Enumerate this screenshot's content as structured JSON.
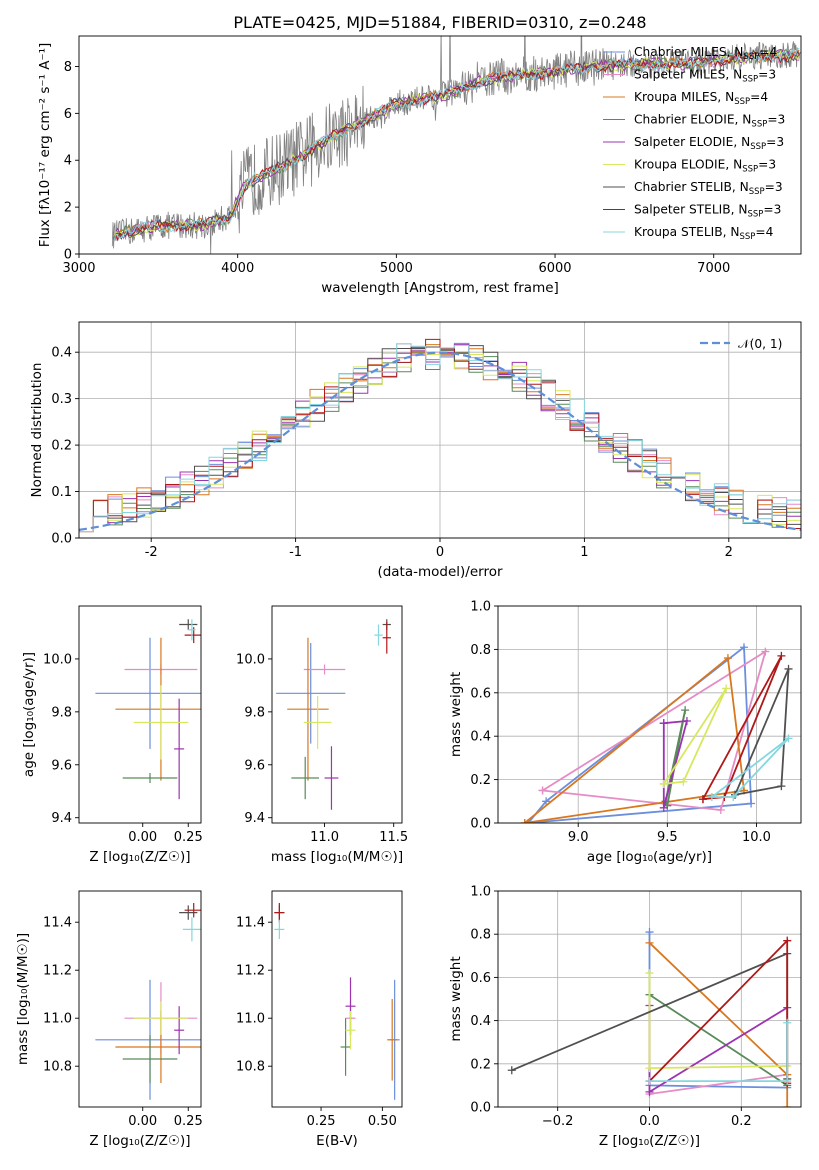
{
  "figure": {
    "title": "PLATE=0425, MJD=51884, FIBERID=0310, z=0.248"
  },
  "colors": {
    "Chabrier MILES": "#6b8fdc",
    "Salpeter MILES": "#e58cc5",
    "Kroupa MILES": "#d9771f",
    "Chabrier ELODIE": "#5a8a5a",
    "Salpeter ELODIE": "#9c34b0",
    "Kroupa ELODIE": "#d7e85e",
    "Chabrier STELIB": "#505050",
    "Salpeter STELIB": "#b01818",
    "Kroupa STELIB": "#85d7df",
    "data": "#808080",
    "normal": "#5f8fd8"
  },
  "chart_data": [
    {
      "type": "line",
      "id": "spectrum",
      "xlabel": "wavelength [Angstrom, rest frame]",
      "ylabel": "Flux [f_λ10^-17 erg cm^-2 s^-1 A^-1]",
      "xlim": [
        3000,
        7550
      ],
      "ylim": [
        0,
        9.3
      ],
      "xticks": [
        3000,
        4000,
        5000,
        6000,
        7000
      ],
      "yticks": [
        0,
        2,
        4,
        6,
        8
      ],
      "legend_position": "top-right",
      "legend": [
        {
          "name": "Chabrier MILES",
          "nssp": "4"
        },
        {
          "name": "Salpeter MILES",
          "nssp": "3"
        },
        {
          "name": "Kroupa MILES",
          "nssp": "4"
        },
        {
          "name": "Chabrier ELODIE",
          "nssp": "3"
        },
        {
          "name": "Salpeter ELODIE",
          "nssp": "3"
        },
        {
          "name": "Kroupa ELODIE",
          "nssp": "3"
        },
        {
          "name": "Chabrier STELIB",
          "nssp": "3"
        },
        {
          "name": "Salpeter STELIB",
          "nssp": "3"
        },
        {
          "name": "Kroupa STELIB",
          "nssp": "4"
        }
      ],
      "continuum": {
        "x": [
          3200,
          3500,
          3800,
          3950,
          4050,
          4300,
          4600,
          5000,
          5300,
          5600,
          6000,
          6400,
          6800,
          7200,
          7550
        ],
        "y": [
          0.8,
          1.2,
          1.25,
          1.6,
          3.0,
          3.8,
          5.0,
          6.4,
          6.8,
          7.5,
          7.8,
          8.1,
          8.1,
          8.4,
          8.5
        ]
      }
    },
    {
      "type": "line",
      "id": "residuals",
      "xlabel": "(data-model)/error",
      "ylabel": "Normed distribution",
      "xlim": [
        -2.5,
        2.5
      ],
      "ylim": [
        0,
        0.465
      ],
      "xticks": [
        -2,
        -1,
        0,
        1,
        2
      ],
      "yticks": [
        0.0,
        0.1,
        0.2,
        0.3,
        0.4
      ],
      "grid": true,
      "legend_position": "top-right",
      "legend_label": "𝒩(0, 1)"
    },
    {
      "type": "scatter",
      "id": "Z-age",
      "xlabel": "Z [log10(Z/Z⊙)]",
      "ylabel": "age [log10(age/yr)]",
      "xlim": [
        -0.35,
        0.32
      ],
      "ylim": [
        9.38,
        10.2
      ],
      "xticks": [
        0.0,
        0.25
      ],
      "yticks": [
        9.4,
        9.6,
        9.8,
        10.0
      ],
      "points": [
        {
          "x": 0.04,
          "xerr": 0.3,
          "y": 9.87,
          "yerr": 0.21
        },
        {
          "x": 0.1,
          "xerr": 0.2,
          "y": 9.96,
          "yerr": 0.0
        },
        {
          "x": 0.1,
          "xerr": 0.25,
          "y": 9.81,
          "yerr": 0.27
        },
        {
          "x": 0.04,
          "xerr": 0.15,
          "y": 9.55,
          "yerr": 0.0
        },
        {
          "x": 0.2,
          "xerr": 0.0,
          "y": 9.66,
          "yerr": 0.19
        },
        {
          "x": 0.1,
          "xerr": 0.15,
          "y": 9.76,
          "yerr": 0.14
        },
        {
          "x": 0.25,
          "xerr": 0.05,
          "y": 10.13,
          "yerr": 0.02
        },
        {
          "x": 0.28,
          "xerr": 0.05,
          "y": 10.09,
          "yerr": 0.03
        },
        {
          "x": 0.27,
          "xerr": 0.02,
          "y": 10.11,
          "yerr": 0.04
        }
      ]
    },
    {
      "type": "scatter",
      "id": "mass-age",
      "xlabel": "mass [log10(M/M⊙)]",
      "ylabel": "",
      "xlim": [
        10.62,
        11.56
      ],
      "ylim": [
        9.38,
        10.2
      ],
      "xticks": [
        11.0,
        11.5
      ],
      "yticks": [
        9.4,
        9.6,
        9.8,
        10.0
      ],
      "points": [
        {
          "x": 10.9,
          "xerr": 0.25,
          "y": 9.87,
          "yerr": 0.19
        },
        {
          "x": 11.0,
          "xerr": 0.15,
          "y": 9.96,
          "yerr": 0.0
        },
        {
          "x": 10.88,
          "xerr": 0.15,
          "y": 9.81,
          "yerr": 0.27
        },
        {
          "x": 10.86,
          "xerr": 0.1,
          "y": 9.55,
          "yerr": 0.08
        },
        {
          "x": 11.05,
          "xerr": 0.05,
          "y": 9.55,
          "yerr": 0.12
        },
        {
          "x": 10.95,
          "xerr": 0.1,
          "y": 9.76,
          "yerr": 0.1
        },
        {
          "x": 11.45,
          "xerr": 0.03,
          "y": 10.13,
          "yerr": 0.02
        },
        {
          "x": 11.45,
          "xerr": 0.03,
          "y": 10.08,
          "yerr": 0.06
        },
        {
          "x": 11.39,
          "xerr": 0.03,
          "y": 10.09,
          "yerr": 0.04
        }
      ]
    },
    {
      "type": "line",
      "id": "age-weight",
      "xlabel": "age [log10(age/yr)]",
      "ylabel": "mass weight",
      "xlim": [
        8.55,
        10.25
      ],
      "ylim": [
        0,
        1.0
      ],
      "xticks": [
        9.0,
        9.5,
        10.0
      ],
      "yticks": [
        0.0,
        0.2,
        0.4,
        0.6,
        0.8,
        1.0
      ],
      "grid": true,
      "series": [
        {
          "key": "Chabrier MILES",
          "x": [
            8.72,
            8.82,
            9.93,
            9.97,
            8.72
          ],
          "y": [
            0.0,
            0.1,
            0.81,
            0.09,
            0.0
          ]
        },
        {
          "key": "Salpeter MILES",
          "x": [
            8.8,
            9.8,
            10.05,
            8.8
          ],
          "y": [
            0.15,
            0.06,
            0.79,
            0.15
          ]
        },
        {
          "key": "Kroupa MILES",
          "x": [
            8.7,
            9.84,
            9.93,
            8.7
          ],
          "y": [
            0.0,
            0.76,
            0.15,
            0.0
          ]
        },
        {
          "key": "Chabrier ELODIE",
          "x": [
            9.5,
            9.6,
            9.49,
            9.5
          ],
          "y": [
            0.08,
            0.52,
            0.1,
            0.08
          ]
        },
        {
          "key": "Salpeter ELODIE",
          "x": [
            9.48,
            9.48,
            9.61,
            9.48
          ],
          "y": [
            0.46,
            0.07,
            0.47,
            0.46
          ]
        },
        {
          "key": "Kroupa ELODIE",
          "x": [
            9.48,
            9.59,
            9.83,
            9.48
          ],
          "y": [
            0.18,
            0.19,
            0.62,
            0.18
          ]
        },
        {
          "key": "Chabrier STELIB",
          "x": [
            9.88,
            10.14,
            10.18,
            9.88
          ],
          "y": [
            0.13,
            0.17,
            0.71,
            0.13
          ]
        },
        {
          "key": "Salpeter STELIB",
          "x": [
            9.7,
            9.82,
            10.14,
            9.7
          ],
          "y": [
            0.11,
            0.12,
            0.77,
            0.11
          ]
        },
        {
          "key": "Kroupa STELIB",
          "x": [
            9.75,
            9.87,
            10.18,
            9.75
          ],
          "y": [
            0.12,
            0.12,
            0.39,
            0.12
          ]
        }
      ]
    },
    {
      "type": "scatter",
      "id": "Z-mass",
      "xlabel": "Z [log10(Z/Z⊙)]",
      "ylabel": "mass [log10(M/M⊙)]",
      "xlim": [
        -0.35,
        0.32
      ],
      "ylim": [
        10.63,
        11.53
      ],
      "xticks": [
        0.0,
        0.25
      ],
      "yticks": [
        10.8,
        11.0,
        11.2,
        11.4
      ],
      "points": [
        {
          "x": 0.04,
          "xerr": 0.3,
          "y": 10.91,
          "yerr": 0.25
        },
        {
          "x": 0.1,
          "xerr": 0.2,
          "y": 11.0,
          "yerr": 0.15
        },
        {
          "x": 0.1,
          "xerr": 0.25,
          "y": 10.88,
          "yerr": 0.15
        },
        {
          "x": 0.04,
          "xerr": 0.15,
          "y": 10.83,
          "yerr": 0.1
        },
        {
          "x": 0.2,
          "xerr": 0.0,
          "y": 10.95,
          "yerr": 0.1
        },
        {
          "x": 0.1,
          "xerr": 0.15,
          "y": 11.0,
          "yerr": 0.07
        },
        {
          "x": 0.25,
          "xerr": 0.05,
          "y": 11.44,
          "yerr": 0.03
        },
        {
          "x": 0.28,
          "xerr": 0.05,
          "y": 11.45,
          "yerr": 0.03
        },
        {
          "x": 0.27,
          "xerr": 0.05,
          "y": 11.37,
          "yerr": 0.05
        }
      ]
    },
    {
      "type": "scatter",
      "id": "ebv-mass",
      "xlabel": "E(B-V)",
      "ylabel": "",
      "xlim": [
        0.05,
        0.58
      ],
      "ylim": [
        10.63,
        11.53
      ],
      "xticks": [
        0.25,
        0.5
      ],
      "yticks": [
        10.8,
        11.0,
        11.2,
        11.4
      ],
      "points": [
        {
          "x": 0.55,
          "y": 10.91,
          "yerr": 0.25
        },
        {
          "x": 0.37,
          "y": 11.0,
          "yerr": 0.07
        },
        {
          "x": 0.54,
          "y": 10.91,
          "yerr": 0.17
        },
        {
          "x": 0.35,
          "y": 10.88,
          "yerr": 0.12
        },
        {
          "x": 0.37,
          "y": 11.05,
          "yerr": 0.12
        },
        {
          "x": 0.37,
          "y": 10.95,
          "yerr": 0.08
        },
        {
          "x": 0.08,
          "y": 11.44,
          "yerr": 0.03
        },
        {
          "x": 0.08,
          "y": 11.44,
          "yerr": 0.04
        },
        {
          "x": 0.08,
          "y": 11.37,
          "yerr": 0.04
        }
      ]
    },
    {
      "type": "line",
      "id": "Z-weight",
      "xlabel": "Z [log10(Z/Z⊙)]",
      "ylabel": "mass weight",
      "xlim": [
        -0.33,
        0.33
      ],
      "ylim": [
        0,
        1.0
      ],
      "xticks": [
        -0.2,
        0.0,
        0.2
      ],
      "yticks": [
        0.0,
        0.2,
        0.4,
        0.6,
        0.8,
        1.0
      ],
      "grid": true,
      "series": [
        {
          "key": "Chabrier MILES",
          "x": [
            0.0,
            0.0,
            0.3
          ],
          "y": [
            0.81,
            0.1,
            0.09
          ]
        },
        {
          "key": "Salpeter MILES",
          "x": [
            0.0,
            0.3
          ],
          "y": [
            0.06,
            0.15
          ]
        },
        {
          "key": "Kroupa MILES",
          "x": [
            0.0,
            0.3,
            0.3
          ],
          "y": [
            0.76,
            0.15,
            0.0
          ]
        },
        {
          "key": "Chabrier ELODIE",
          "x": [
            0.0,
            0.3
          ],
          "y": [
            0.52,
            0.1
          ]
        },
        {
          "key": "Salpeter ELODIE",
          "x": [
            0.0,
            0.0,
            0.3
          ],
          "y": [
            0.47,
            0.07,
            0.46
          ]
        },
        {
          "key": "Kroupa ELODIE",
          "x": [
            0.0,
            0.0,
            0.3
          ],
          "y": [
            0.62,
            0.18,
            0.19
          ]
        },
        {
          "key": "Chabrier STELIB",
          "x": [
            -0.3,
            0.3,
            0.3
          ],
          "y": [
            0.17,
            0.71,
            0.13
          ]
        },
        {
          "key": "Salpeter STELIB",
          "x": [
            0.0,
            0.3,
            0.3
          ],
          "y": [
            0.12,
            0.77,
            0.11
          ]
        },
        {
          "key": "Kroupa STELIB",
          "x": [
            0.0,
            0.3,
            0.3
          ],
          "y": [
            0.12,
            0.12,
            0.39
          ]
        }
      ]
    }
  ]
}
